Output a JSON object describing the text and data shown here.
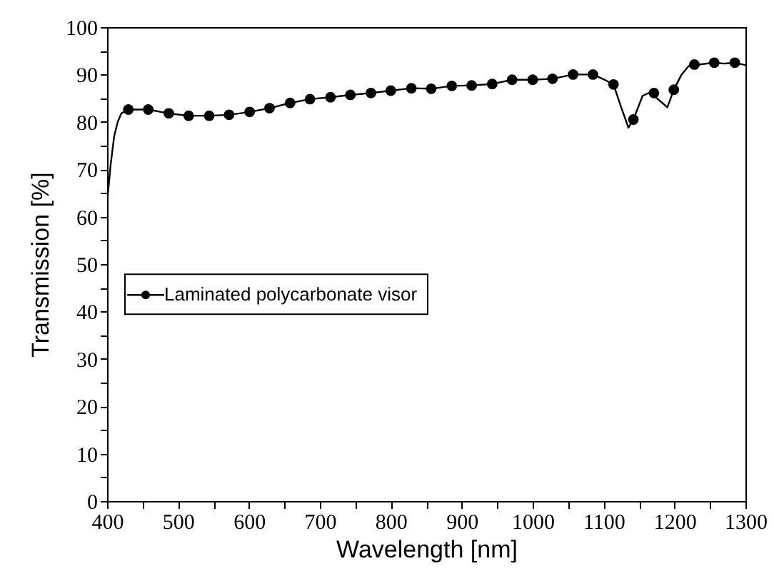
{
  "chart_data": {
    "type": "line",
    "xlabel": "Wavelength [nm]",
    "ylabel": "Transmission [%]",
    "xlim": [
      400,
      1300
    ],
    "ylim": [
      0,
      100
    ],
    "xticks": [
      400,
      {
        "value": 450,
        "label": null
      },
      500,
      {
        "value": 550,
        "label": null
      },
      600,
      {
        "value": 650,
        "label": null
      },
      700,
      {
        "value": 750,
        "label": null
      },
      800,
      {
        "value": 850,
        "label": null
      },
      900,
      {
        "value": 950,
        "label": null
      },
      1000,
      {
        "value": 1050,
        "label": null
      },
      1100,
      {
        "value": 1150,
        "label": null
      },
      1200,
      {
        "value": 1250,
        "label": null
      },
      1300
    ],
    "yticks": [
      0,
      {
        "value": 5,
        "label": null
      },
      10,
      {
        "value": 15,
        "label": null
      },
      20,
      {
        "value": 25,
        "label": null
      },
      30,
      {
        "value": 35,
        "label": null
      },
      40,
      {
        "value": 45,
        "label": null
      },
      50,
      {
        "value": 55,
        "label": null
      },
      60,
      {
        "value": 65,
        "label": null
      },
      70,
      {
        "value": 75,
        "label": null
      },
      80,
      {
        "value": 85,
        "label": null
      },
      90,
      {
        "value": 95,
        "label": null
      },
      100
    ],
    "grid": false,
    "legend": "left",
    "line_style": "solid",
    "series": [
      {
        "type": "line",
        "marker": "none",
        "color": "#000000",
        "x": [
          400,
          405,
          410,
          415,
          420,
          430,
          458,
          487,
          515,
          544,
          572,
          601,
          629,
          658,
          686,
          715,
          743,
          772,
          800,
          829,
          857,
          886,
          914,
          943,
          971,
          1000,
          1028,
          1057,
          1085,
          1100,
          1114,
          1125,
          1135,
          1142,
          1155,
          1165,
          1175,
          1190,
          1199,
          1210,
          1220,
          1240,
          1256,
          1270,
          1285,
          1300
        ],
        "values": [
          63,
          71,
          77,
          80,
          81.8,
          82.6,
          82.6,
          81.8,
          81.3,
          81.3,
          81.5,
          82.1,
          82.9,
          84.0,
          84.8,
          85.2,
          85.7,
          86.1,
          86.6,
          87.1,
          87.0,
          87.6,
          87.7,
          88.0,
          88.9,
          88.9,
          89.1,
          90.0,
          90.0,
          89.0,
          87.9,
          83.0,
          78.8,
          80.5,
          85.5,
          86.2,
          85.0,
          83.1,
          86.8,
          90.0,
          91.8,
          92.2,
          92.5,
          92.3,
          92.5,
          92.0
        ]
      },
      {
        "type": "scatter",
        "name": "Laminated polycarbonate visor",
        "marker": "circle",
        "color": "#000000",
        "x": [
          430,
          458,
          487,
          515,
          544,
          572,
          601,
          629,
          658,
          686,
          715,
          743,
          772,
          800,
          829,
          857,
          886,
          914,
          943,
          971,
          1000,
          1028,
          1057,
          1085,
          1114,
          1142,
          1171,
          1199,
          1228,
          1256,
          1285
        ],
        "values": [
          82.6,
          82.6,
          81.8,
          81.3,
          81.3,
          81.5,
          82.1,
          82.9,
          84.0,
          84.8,
          85.2,
          85.7,
          86.1,
          86.6,
          87.1,
          87.0,
          87.6,
          87.7,
          88.0,
          88.9,
          88.9,
          89.1,
          90.0,
          90.0,
          87.9,
          80.5,
          86.1,
          86.8,
          92.1,
          92.5,
          92.5
        ]
      }
    ]
  }
}
